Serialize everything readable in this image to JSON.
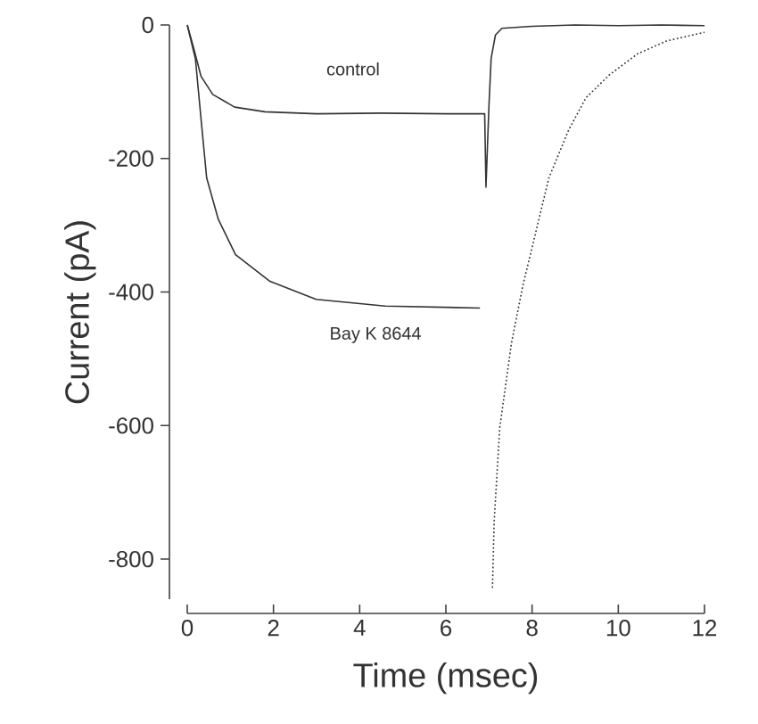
{
  "chart_data": {
    "type": "line",
    "xlabel": "Time (msec)",
    "ylabel": "Current (pA)",
    "xlim": [
      0,
      12
    ],
    "ylim": [
      -860,
      0
    ],
    "xticks": [
      0,
      2,
      4,
      6,
      8,
      10,
      12
    ],
    "yticks": [
      -800,
      -600,
      -400,
      -200,
      0
    ],
    "marker": "none",
    "series": [
      {
        "name": "control",
        "color": "#333333",
        "line_style": "solid",
        "x": [
          0,
          0.15,
          0.32,
          0.59,
          1.1,
          1.8,
          3.0,
          4.5,
          6.0,
          6.9,
          6.93,
          7.0,
          7.05,
          7.15,
          7.3,
          8,
          9,
          10,
          11,
          12
        ],
        "values": [
          0,
          -35,
          -77,
          -104,
          -123,
          -130,
          -133,
          -132,
          -133,
          -133,
          -243,
          -120,
          -50,
          -15,
          -5,
          -2,
          0,
          -1,
          0,
          -1
        ]
      },
      {
        "name": "Bay K 8644",
        "color": "#333333",
        "line_style": "solid",
        "x": [
          0,
          0.19,
          0.32,
          0.45,
          0.72,
          1.12,
          1.92,
          2.99,
          4.59,
          6.79
        ],
        "values": [
          0,
          -51,
          -141,
          -229,
          -291,
          -344,
          -384,
          -411,
          -421,
          -424
        ]
      },
      {
        "color": "#333333",
        "line_style": "dotted",
        "x": [
          7.08,
          7.12,
          7.25,
          7.52,
          7.79,
          7.99,
          8.39,
          8.85,
          9.25,
          9.79,
          10.45,
          11.12,
          12
        ],
        "values": [
          -843,
          -744,
          -603,
          -477,
          -389,
          -336,
          -229,
          -157,
          -109,
          -75,
          -43,
          -24,
          -11
        ]
      }
    ]
  }
}
